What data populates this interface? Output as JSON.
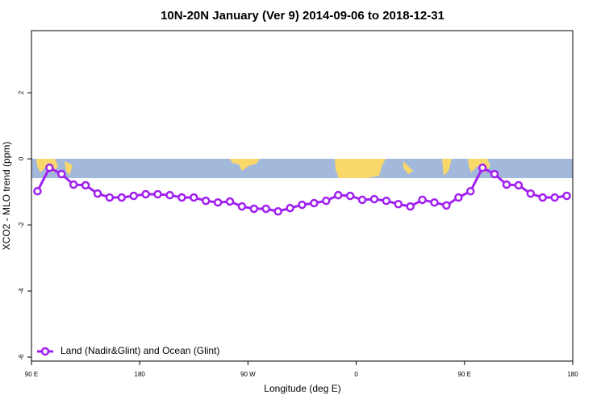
{
  "chart_data": {
    "type": "line",
    "title": "10N-20N January (Ver 9)   2014-09-06 to 2018-12-31",
    "x_label": "Longitude (deg E)",
    "y_label": "XCO2 - MLO trend (ppm)",
    "x": [
      95,
      105,
      115,
      125,
      135,
      145,
      155,
      165,
      175,
      185,
      195,
      205,
      215,
      225,
      235,
      245,
      255,
      265,
      275,
      285,
      295,
      305,
      315,
      325,
      335,
      345,
      355,
      365,
      375,
      385,
      395,
      405,
      415,
      425,
      435,
      445,
      455,
      465,
      475,
      485,
      495,
      505,
      515,
      525,
      535
    ],
    "series": [
      {
        "name": "Land (Nadir&Glint) and Ocean (Glint)",
        "color": "#a020f0",
        "values": [
          -0.98,
          -0.27,
          -0.46,
          -0.78,
          -0.8,
          -1.05,
          -1.17,
          -1.17,
          -1.12,
          -1.07,
          -1.07,
          -1.1,
          -1.17,
          -1.17,
          -1.27,
          -1.32,
          -1.29,
          -1.44,
          -1.51,
          -1.51,
          -1.59,
          -1.49,
          -1.39,
          -1.34,
          -1.27,
          -1.1,
          -1.12,
          -1.24,
          -1.22,
          -1.27,
          -1.37,
          -1.44,
          -1.24,
          -1.32,
          -1.41,
          -1.17,
          -0.98,
          -0.27,
          -0.46,
          -0.78,
          -0.8,
          -1.05,
          -1.17,
          -1.17,
          -1.12
        ]
      }
    ],
    "xlim": [
      90,
      540
    ],
    "xticks": [
      {
        "value": 90,
        "label": "90 E"
      },
      {
        "value": 180,
        "label": "180"
      },
      {
        "value": 270,
        "label": "90 W"
      },
      {
        "value": 360,
        "label": "0"
      },
      {
        "value": 450,
        "label": "90 E"
      },
      {
        "value": 540,
        "label": "180"
      }
    ],
    "ylim": [
      -6.12,
      3.88
    ],
    "yticks": [
      -6,
      -4,
      -2,
      0,
      2
    ],
    "legend": "bottom-left"
  }
}
